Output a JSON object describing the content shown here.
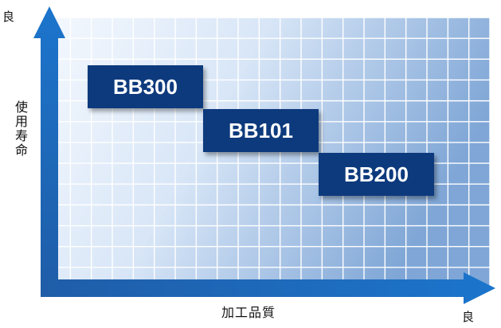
{
  "axes": {
    "y_title": "使用寿命",
    "y_end": "良",
    "x_title": "加工品質",
    "x_end": "良"
  },
  "products": [
    "BB300",
    "BB101",
    "BB200"
  ],
  "colors": {
    "axis_arrow": "#1a5fb0",
    "box": "#0d3a7d",
    "grid_light": "#f3f7fd",
    "grid_dark": "#6f9ad0"
  }
}
